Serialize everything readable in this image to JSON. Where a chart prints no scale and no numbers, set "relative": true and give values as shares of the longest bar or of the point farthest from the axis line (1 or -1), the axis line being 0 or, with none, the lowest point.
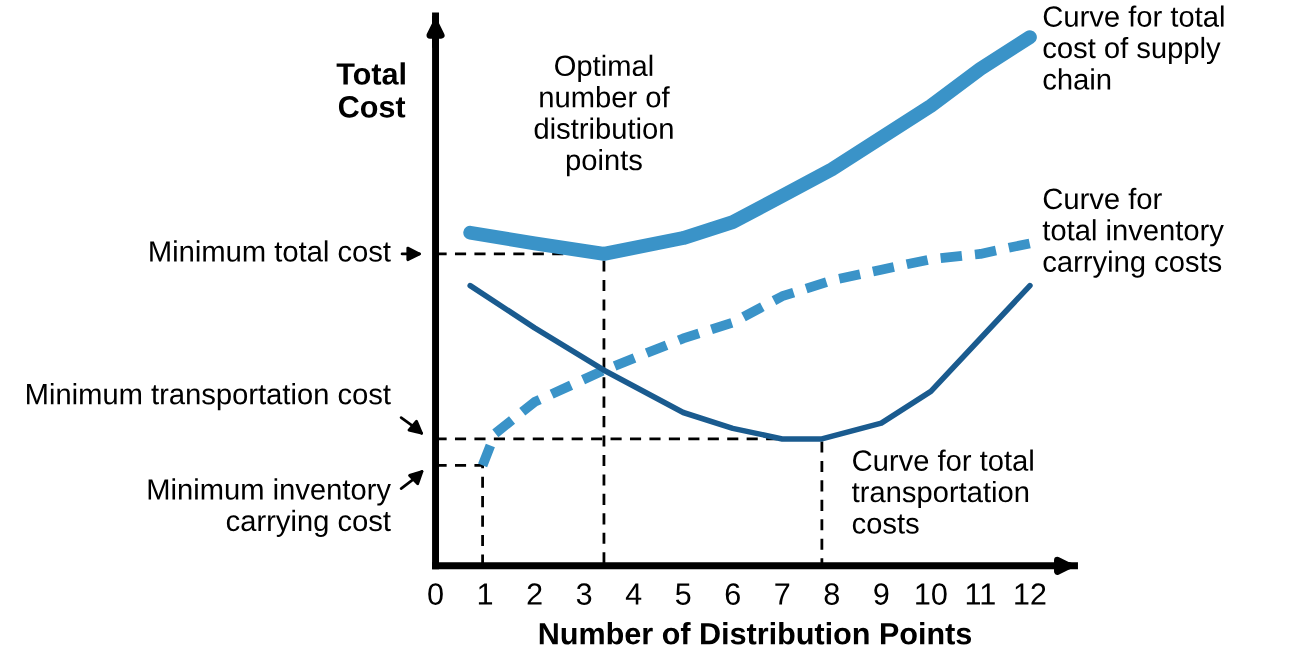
{
  "chart_data": {
    "type": "line",
    "relative": true,
    "xlabel": "Number of Distribution Points",
    "ylabel": "Total\nCost",
    "xlim": [
      0,
      12.9
    ],
    "xticks": [
      0,
      1,
      2,
      3,
      4,
      5,
      6,
      7,
      8,
      9,
      10,
      11,
      12
    ],
    "grid": false,
    "legend": false,
    "marker": "none",
    "series": [
      {
        "name": "Curve for total\ncost of supply\nchain",
        "color": "#3a93c8",
        "line_style": "solid",
        "x": [
          0.7,
          2,
          3.4,
          5,
          6,
          7,
          8,
          9,
          10,
          11,
          12
        ],
        "values": [
          0.63,
          0.61,
          0.59,
          0.62,
          0.65,
          0.7,
          0.75,
          0.81,
          0.87,
          0.94,
          1.0
        ]
      },
      {
        "name": "Curve for\ntotal inventory\ncarrying costs",
        "color": "#3a93c8",
        "line_style": "dashed",
        "x": [
          0.95,
          1.2,
          2,
          3.4,
          5,
          6,
          7,
          8,
          9,
          10,
          11,
          12
        ],
        "values": [
          0.19,
          0.25,
          0.31,
          0.37,
          0.43,
          0.46,
          0.51,
          0.54,
          0.56,
          0.58,
          0.59,
          0.61
        ]
      },
      {
        "name": "Curve for total\ntransportation\ncosts",
        "color": "#1a5b8f",
        "line_style": "solid",
        "x": [
          0.7,
          2,
          3.4,
          5,
          6,
          7,
          7.8,
          9,
          10,
          11,
          12
        ],
        "values": [
          0.53,
          0.45,
          0.37,
          0.29,
          0.26,
          0.24,
          0.24,
          0.27,
          0.33,
          0.43,
          0.53
        ]
      },
      {
        "color": "#000000",
        "line_style": "dashed",
        "x": [
          0,
          3.4,
          3.4
        ],
        "values": [
          0.59,
          0.59,
          0
        ]
      },
      {
        "color": "#000000",
        "line_style": "dashed",
        "x": [
          0,
          7.8,
          7.8
        ],
        "values": [
          0.24,
          0.24,
          0
        ]
      },
      {
        "color": "#000000",
        "line_style": "dashed",
        "x": [
          0,
          0.95,
          0.95
        ],
        "values": [
          0.19,
          0.19,
          0
        ]
      }
    ],
    "annotations": [
      {
        "text": "Optimal\nnumber of\ndistribution\npoints",
        "x": 3.4,
        "y": 0.59
      },
      "Minimum total cost",
      "Minimum transportation cost",
      "Minimum inventory\ncarrying cost"
    ]
  }
}
